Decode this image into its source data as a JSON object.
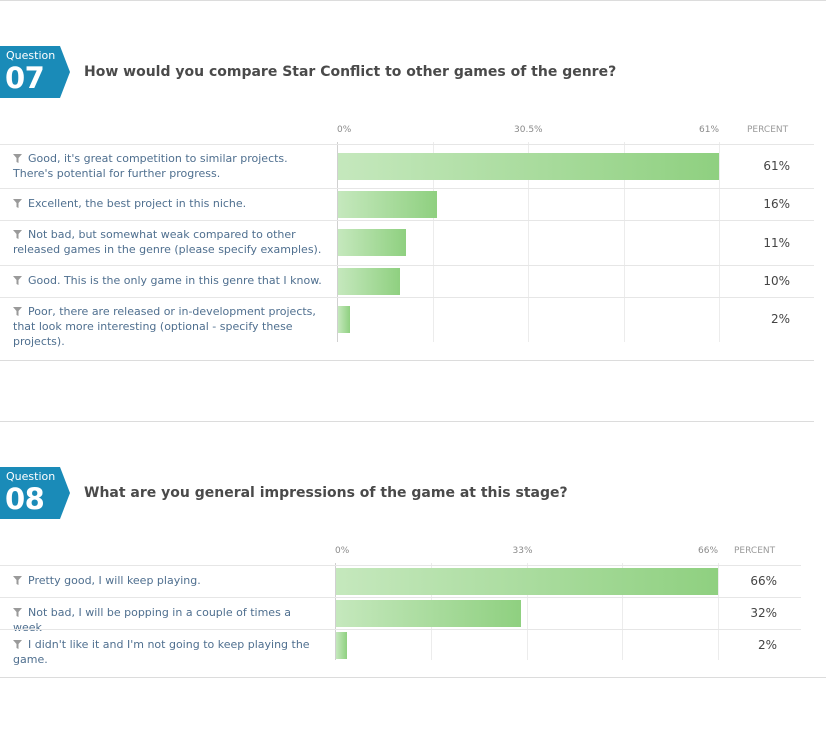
{
  "questions": [
    {
      "word": "Question",
      "number": "07",
      "title": "How would you compare Star Conflict to other games of the genre?",
      "chart_data": {
        "type": "bar",
        "orientation": "horizontal",
        "categories": [
          "Good, it's great competition to similar projects. There's potential for further progress.",
          "Excellent, the best project in this niche.",
          "Not bad, but somewhat weak compared to other released games in the genre (please specify examples).",
          "Good. This is the only game in this genre that I know.",
          "Poor, there are released or in-development projects, that look more interesting (optional - specify these projects)."
        ],
        "values": [
          61,
          16,
          11,
          10,
          2
        ],
        "value_labels": [
          "61%",
          "16%",
          "11%",
          "10%",
          "2%"
        ],
        "ticks": [
          "0%",
          "30.5%",
          "61%"
        ],
        "xlim": [
          0,
          61
        ],
        "value_column_header": "PERCENT",
        "bar_color": "#8fd080"
      }
    },
    {
      "word": "Question",
      "number": "08",
      "title": "What are you general impressions of the game at this stage?",
      "chart_data": {
        "type": "bar",
        "orientation": "horizontal",
        "categories": [
          "Pretty good, I will keep playing.",
          "Not bad, I will be popping in a couple of times a week",
          "I didn't like it and I'm not going to keep playing the game."
        ],
        "values": [
          66,
          32,
          2
        ],
        "value_labels": [
          "66%",
          "32%",
          "2%"
        ],
        "ticks": [
          "0%",
          "33%",
          "66%"
        ],
        "xlim": [
          0,
          66
        ],
        "value_column_header": "PERCENT",
        "bar_color": "#8fd080"
      }
    }
  ],
  "colors": {
    "badge": "#1a8bb8",
    "label_text": "#4f6f8f"
  }
}
